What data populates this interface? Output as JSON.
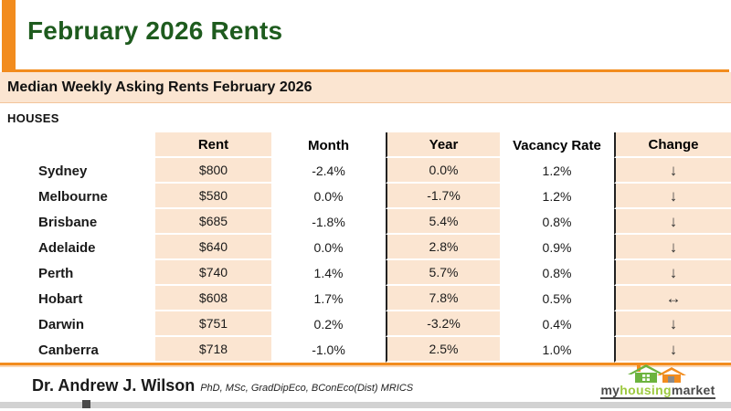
{
  "page": {
    "title": "February 2026 Rents",
    "subtitle": "Median Weekly Asking Rents February 2026",
    "section_label": "HOUSES"
  },
  "table": {
    "columns": [
      "Rent",
      "Month",
      "Year",
      "Vacancy Rate",
      "Change"
    ],
    "rows": [
      {
        "city": "Sydney",
        "rent": "$800",
        "month": "-2.4%",
        "year": "0.0%",
        "vacancy_rate": "1.2%",
        "change": {
          "symbol": "↓",
          "direction": "down"
        }
      },
      {
        "city": "Melbourne",
        "rent": "$580",
        "month": "0.0%",
        "year": "-1.7%",
        "vacancy_rate": "1.2%",
        "change": {
          "symbol": "↓",
          "direction": "down"
        }
      },
      {
        "city": "Brisbane",
        "rent": "$685",
        "month": "-1.8%",
        "year": "5.4%",
        "vacancy_rate": "0.8%",
        "change": {
          "symbol": "↓",
          "direction": "down"
        }
      },
      {
        "city": "Adelaide",
        "rent": "$640",
        "month": "0.0%",
        "year": "2.8%",
        "vacancy_rate": "0.9%",
        "change": {
          "symbol": "↓",
          "direction": "down"
        }
      },
      {
        "city": "Perth",
        "rent": "$740",
        "month": "1.4%",
        "year": "5.7%",
        "vacancy_rate": "0.8%",
        "change": {
          "symbol": "↓",
          "direction": "down"
        }
      },
      {
        "city": "Hobart",
        "rent": "$608",
        "month": "1.7%",
        "year": "7.8%",
        "vacancy_rate": "0.5%",
        "change": {
          "symbol": "↔",
          "direction": "stable"
        }
      },
      {
        "city": "Darwin",
        "rent": "$751",
        "month": "0.2%",
        "year": "-3.2%",
        "vacancy_rate": "0.4%",
        "change": {
          "symbol": "↓",
          "direction": "down"
        }
      },
      {
        "city": "Canberra",
        "rent": "$718",
        "month": "-1.0%",
        "year": "2.5%",
        "vacancy_rate": "1.0%",
        "change": {
          "symbol": "↓",
          "direction": "down"
        }
      }
    ]
  },
  "footer": {
    "author_name": "Dr. Andrew J. Wilson",
    "author_credentials": "PhD, MSc, GradDipEco, BConEco(Dist) MRICS",
    "logo": {
      "text_my": "my",
      "text_housing": "housing",
      "text_market": "market"
    }
  },
  "colors": {
    "accent_orange": "#F28C1E",
    "shaded_peach": "#FBE5D1",
    "title_green": "#1E5B1E",
    "logo_green_house": "#6CB33E",
    "logo_green_text": "#9DC93F",
    "divider_black": "#222222"
  }
}
